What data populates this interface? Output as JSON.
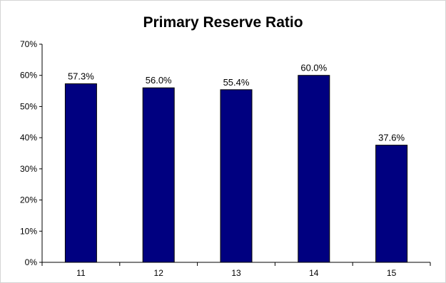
{
  "chart_data": {
    "type": "bar",
    "title": "Primary Reserve Ratio",
    "xlabel": "",
    "ylabel": "",
    "categories": [
      "11",
      "12",
      "13",
      "14",
      "15"
    ],
    "values": [
      57.3,
      56.0,
      55.4,
      60.0,
      37.6
    ],
    "value_labels": [
      "57.3%",
      "56.0%",
      "55.4%",
      "60.0%",
      "37.6%"
    ],
    "ylim": [
      0,
      70
    ],
    "yticks": [
      0,
      10,
      20,
      30,
      40,
      50,
      60,
      70
    ],
    "ytick_labels": [
      "0%",
      "10%",
      "20%",
      "30%",
      "40%",
      "50%",
      "60%",
      "70%"
    ],
    "grid": false,
    "legend": "none",
    "bar_color": "#000080"
  }
}
